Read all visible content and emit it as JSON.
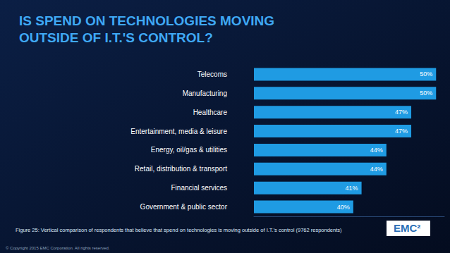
{
  "chart_data": {
    "type": "bar",
    "title": "IS SPEND ON TECHNOLOGIES MOVING OUTSIDE OF I.T.'S CONTROL?",
    "orientation": "horizontal",
    "categories": [
      "Telecoms",
      "Manufacturing",
      "Healthcare",
      "Entertainment, media & leisure",
      "Energy, oil/gas & utilities",
      "Retail, distribution & transport",
      "Financial services",
      "Government & public sector"
    ],
    "values": [
      50,
      50,
      47,
      47,
      44,
      44,
      41,
      40
    ],
    "value_labels": [
      "50%",
      "50%",
      "47%",
      "47%",
      "44%",
      "44%",
      "41%",
      "40%"
    ],
    "color": "#1f9be3",
    "xlim": [
      28,
      51
    ],
    "data_labels": true,
    "tick_labels": "y",
    "grid": false,
    "annotations": [
      "Figure 25: Vertical comparison of respondents that believe that spend on technologies is moving outside of I.T.'s control (9762 respondents)",
      "© Copyright 2015 EMC Corporation. All rights reserved.",
      "EMC²"
    ]
  }
}
